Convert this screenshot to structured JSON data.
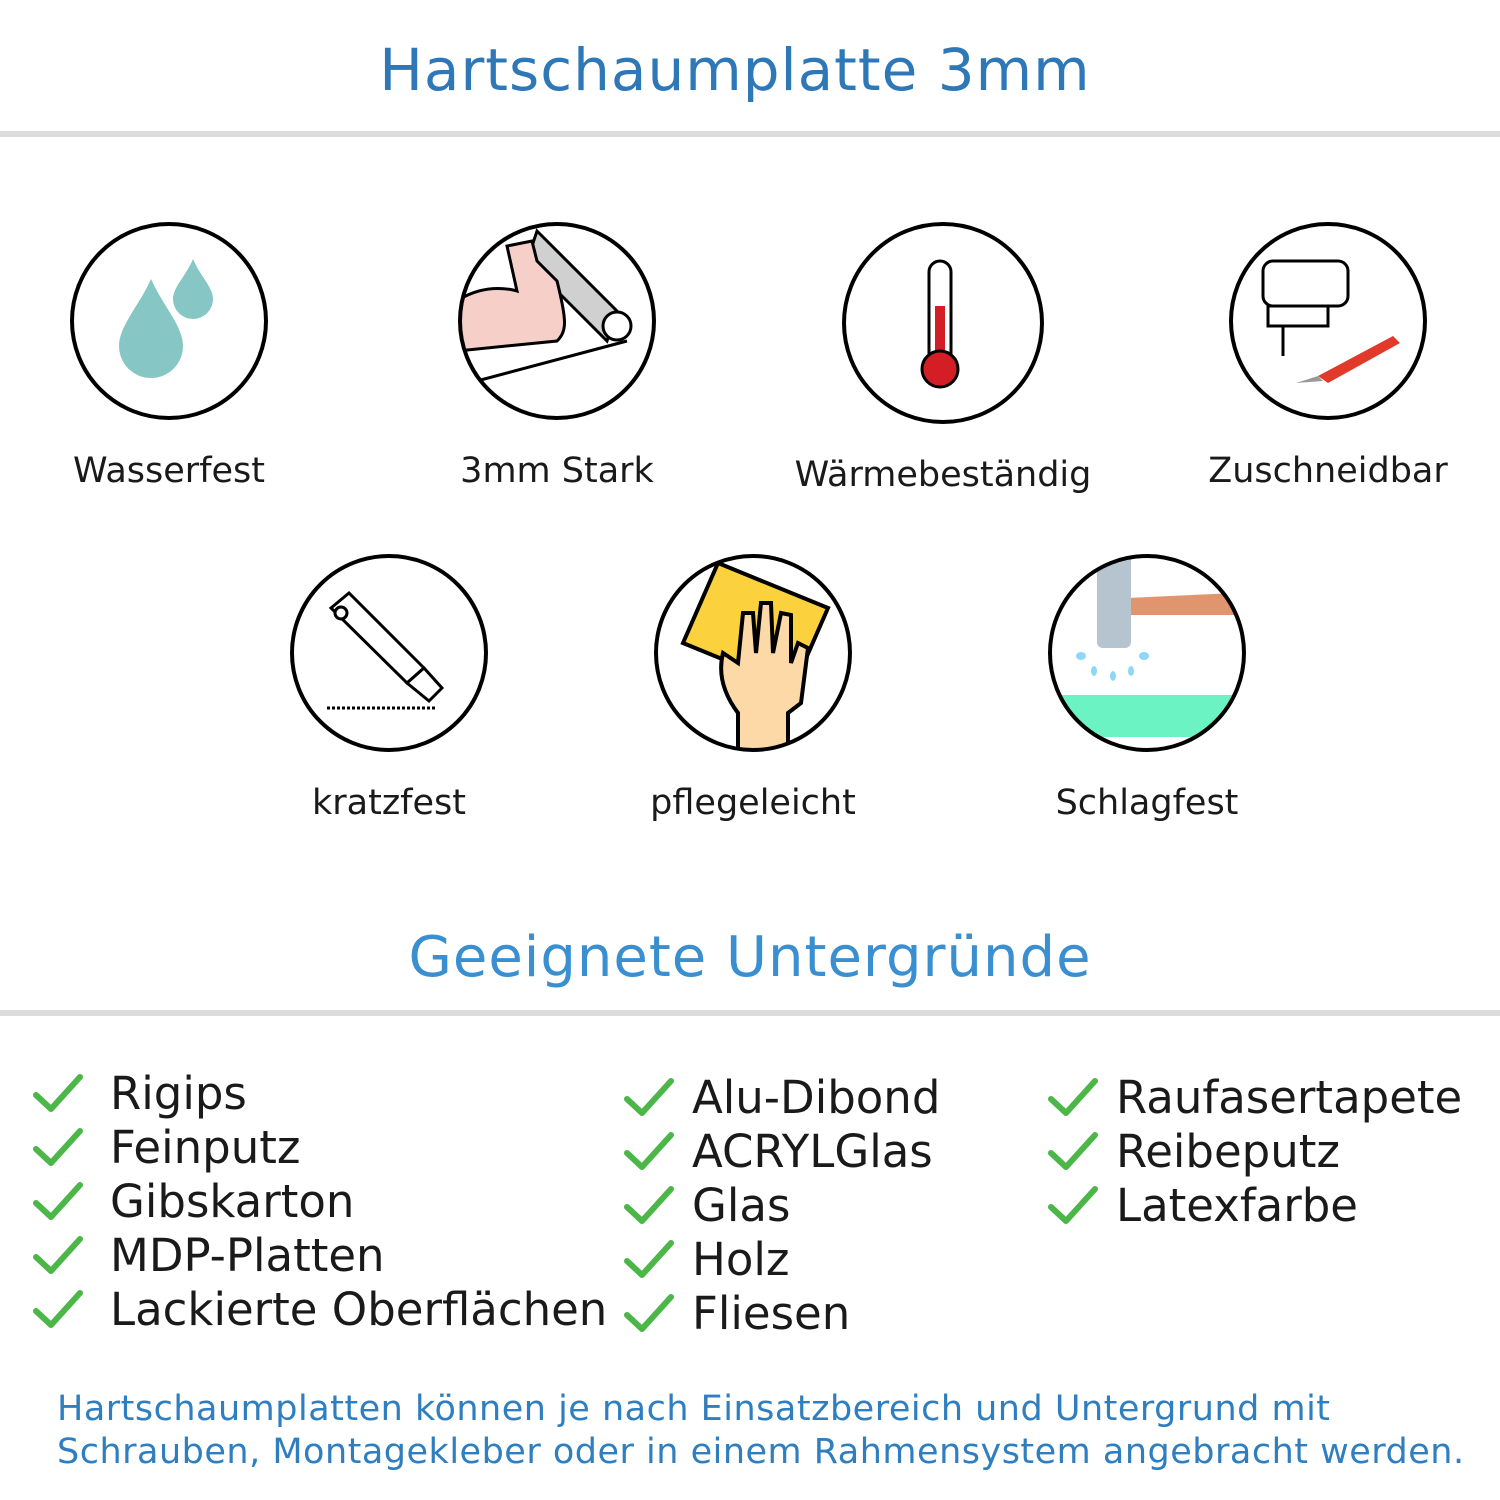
{
  "title": "Hartschaumplatte 3mm",
  "features": [
    {
      "label": "Wasserfest",
      "icon": "water-drops-icon"
    },
    {
      "label": "3mm Stark",
      "icon": "muscle-arm-icon"
    },
    {
      "label": "Wärmebeständig",
      "icon": "thermometer-icon"
    },
    {
      "label": "Zuschneidbar",
      "icon": "jigsaw-knife-icon"
    },
    {
      "label": "kratzfest",
      "icon": "cutter-knife-icon"
    },
    {
      "label": "pflegeleicht",
      "icon": "cleaning-cloth-hand-icon"
    },
    {
      "label": "Schlagfest",
      "icon": "hammer-icon"
    }
  ],
  "substrates_title": "Geeignete Untergründe",
  "substrates": {
    "col1": [
      "Rigips",
      "Feinputz",
      "Gibskarton",
      "MDP-Platten",
      "Lackierte Oberflächen"
    ],
    "col2": [
      "Alu-Dibond",
      "ACRYLGlas",
      "Glas",
      "Holz",
      "Fliesen"
    ],
    "col3": [
      "Raufasertapete",
      "Reibeputz",
      "Latexfarbe"
    ]
  },
  "footer": {
    "line1": "Hartschaumplatten können je nach Einsatzbereich und Untergrund mit",
    "line2": "Schrauben, Montagekleber oder in einem Rahmensystem angebracht werden."
  },
  "colors": {
    "title": "#2e78b8",
    "check": "#4cb748",
    "footer": "#2f7fc0"
  }
}
